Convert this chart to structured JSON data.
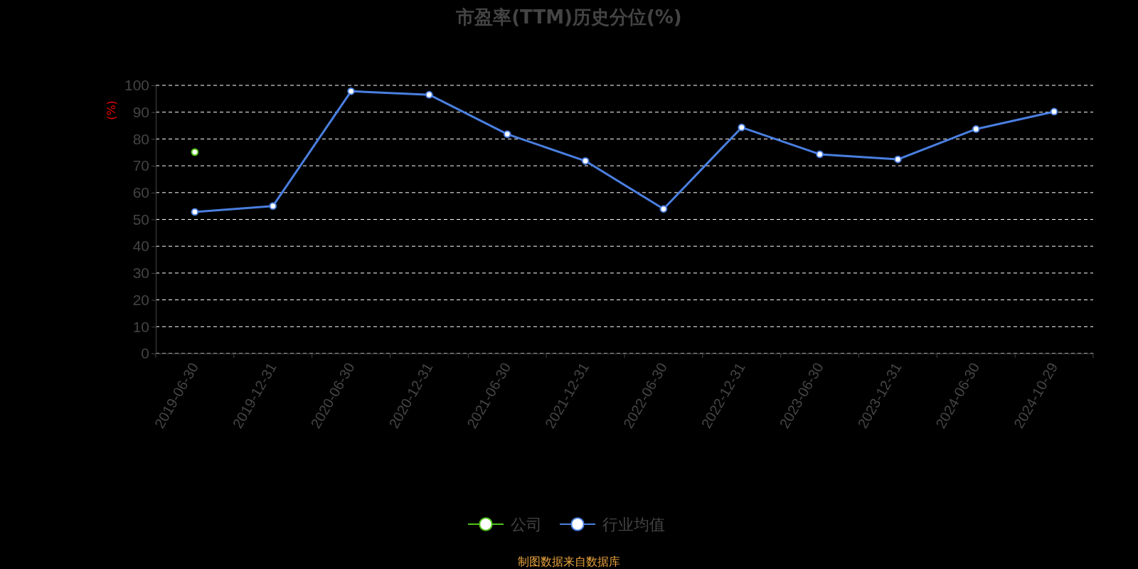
{
  "chart_data": {
    "type": "line",
    "title": "市盈率(TTM)历史分位(%)",
    "ylabel": "(%)",
    "categories": [
      "2019-06-30",
      "2019-12-31",
      "2020-06-30",
      "2020-12-31",
      "2021-06-30",
      "2021-12-31",
      "2022-06-30",
      "2022-12-31",
      "2023-06-30",
      "2023-12-31",
      "2024-06-30",
      "2024-10-29"
    ],
    "series": [
      {
        "name": "公司",
        "color": "#52c41a",
        "values": [
          75.1,
          null,
          null,
          null,
          null,
          null,
          null,
          null,
          null,
          null,
          null,
          null
        ]
      },
      {
        "name": "行业均值",
        "color": "#4a7fe0",
        "values": [
          52.8,
          55.0,
          97.8,
          96.5,
          81.8,
          71.8,
          53.9,
          84.3,
          74.3,
          72.4,
          83.7,
          90.2
        ]
      }
    ],
    "ylim": [
      0,
      100
    ],
    "yticks": [
      0,
      10,
      20,
      30,
      40,
      50,
      60,
      70,
      80,
      90,
      100
    ],
    "grid": "y",
    "legend": "bottom",
    "marker": "circle",
    "line_style": "solid",
    "annotations": [
      "制图数据来自数据库"
    ]
  }
}
